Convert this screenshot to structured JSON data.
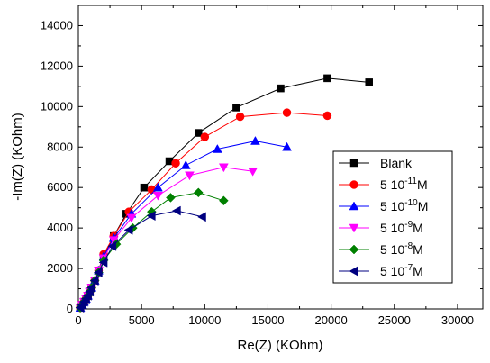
{
  "chart_data": {
    "type": "scatter",
    "title": "",
    "xlabel": "Re(Z) (KOhm)",
    "ylabel": "-Im(Z) (KOhm)",
    "xlim": [
      0,
      32000
    ],
    "ylim": [
      0,
      15000
    ],
    "x_ticks": [
      "0",
      "5000",
      "10000",
      "15000",
      "20000",
      "25000",
      "30000"
    ],
    "y_ticks": [
      "0",
      "2000",
      "4000",
      "6000",
      "8000",
      "10000",
      "12000",
      "14000"
    ],
    "x_tick_values": [
      0,
      5000,
      10000,
      15000,
      20000,
      25000,
      30000
    ],
    "y_tick_values": [
      0,
      2000,
      4000,
      6000,
      8000,
      10000,
      12000,
      14000
    ],
    "legend_position": "right-middle",
    "grid": false,
    "series": [
      {
        "name": "Blank",
        "name_base": "Blank",
        "name_exp": "",
        "name_unit": "",
        "color": "#000000",
        "marker": "square",
        "x": [
          150,
          300,
          450,
          600,
          750,
          900,
          1050,
          1300,
          1600,
          2000,
          2800,
          3800,
          5200,
          7200,
          9500,
          12500,
          16000,
          19700,
          23000
        ],
        "y": [
          60,
          200,
          350,
          500,
          650,
          850,
          1050,
          1400,
          1900,
          2600,
          3600,
          4700,
          6000,
          7300,
          8700,
          9950,
          10900,
          11400,
          11200
        ]
      },
      {
        "name": "5 10-11M",
        "name_base": "5 10",
        "name_exp": "-11",
        "name_unit": "M",
        "color": "#ff0000",
        "marker": "circle",
        "x": [
          150,
          300,
          450,
          600,
          750,
          900,
          1050,
          1300,
          1600,
          2000,
          2800,
          4000,
          5800,
          7700,
          10000,
          12800,
          16500,
          19700
        ],
        "y": [
          60,
          200,
          350,
          500,
          650,
          850,
          1050,
          1400,
          1900,
          2700,
          3600,
          4800,
          5900,
          7200,
          8500,
          9500,
          9700,
          9550
        ]
      },
      {
        "name": "5 10-10M",
        "name_base": "5 10",
        "name_exp": "-10",
        "name_unit": "M",
        "color": "#0000ff",
        "marker": "triangle-up",
        "x": [
          150,
          300,
          450,
          600,
          750,
          900,
          1050,
          1300,
          1600,
          2000,
          2800,
          4200,
          6300,
          8500,
          11000,
          14000,
          16500
        ],
        "y": [
          60,
          200,
          350,
          500,
          650,
          850,
          1050,
          1400,
          1900,
          2600,
          3500,
          4700,
          6000,
          7100,
          7900,
          8300,
          8000
        ]
      },
      {
        "name": "5 10-9M",
        "name_base": "5 10",
        "name_exp": "-9",
        "name_unit": "M",
        "color": "#ff00ff",
        "marker": "triangle-down",
        "x": [
          150,
          300,
          450,
          600,
          750,
          900,
          1050,
          1300,
          1600,
          2000,
          2800,
          4200,
          6300,
          8800,
          11500,
          13800
        ],
        "y": [
          60,
          200,
          350,
          500,
          650,
          850,
          1050,
          1400,
          1900,
          2500,
          3400,
          4500,
          5600,
          6600,
          7000,
          6800
        ]
      },
      {
        "name": "5 10-8M",
        "name_base": "5 10",
        "name_exp": "-8",
        "name_unit": "M",
        "color": "#008000",
        "marker": "diamond",
        "x": [
          150,
          300,
          450,
          600,
          750,
          900,
          1050,
          1300,
          1600,
          2000,
          3000,
          4300,
          5800,
          7300,
          9500,
          11500
        ],
        "y": [
          60,
          200,
          350,
          500,
          650,
          850,
          1050,
          1400,
          1800,
          2400,
          3200,
          4000,
          4800,
          5500,
          5750,
          5350
        ]
      },
      {
        "name": "5 10-7M",
        "name_base": "5 10",
        "name_exp": "-7",
        "name_unit": "M",
        "color": "#000080",
        "marker": "triangle-left",
        "x": [
          150,
          300,
          450,
          600,
          750,
          900,
          1050,
          1300,
          1600,
          2000,
          2700,
          4000,
          5800,
          7800,
          9800
        ],
        "y": [
          60,
          200,
          350,
          500,
          650,
          850,
          1050,
          1400,
          1800,
          2300,
          3100,
          3900,
          4600,
          4850,
          4550
        ]
      }
    ]
  }
}
